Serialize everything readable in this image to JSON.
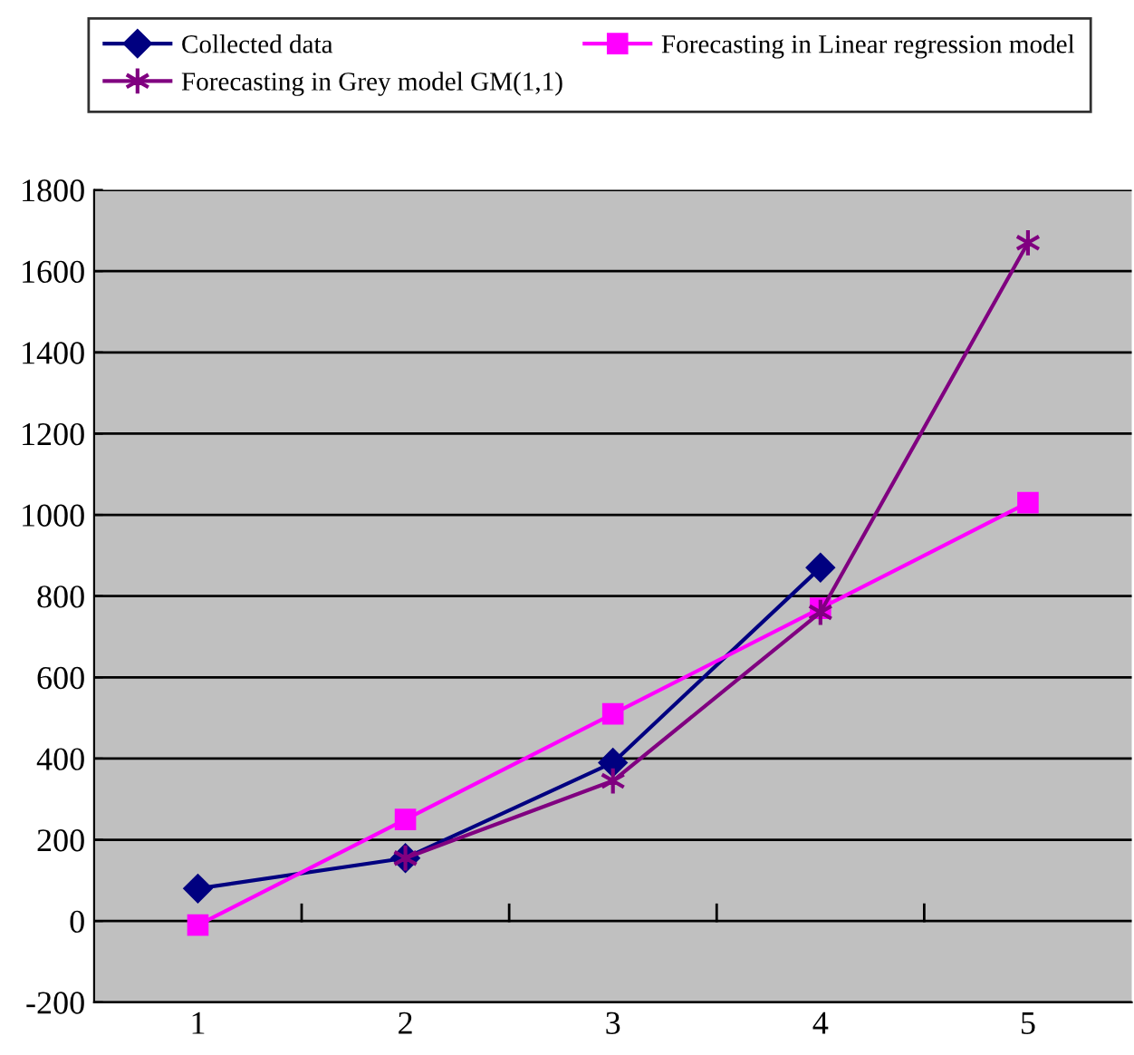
{
  "chart_data": {
    "type": "line",
    "categories": [
      "1",
      "2",
      "3",
      "4",
      "5"
    ],
    "series": [
      {
        "name": "Collected data",
        "color": "#000080",
        "marker": "diamond",
        "values": [
          80,
          155,
          390,
          870,
          null
        ]
      },
      {
        "name": "Forecasting in Linear regression model",
        "color": "#ff00ff",
        "marker": "square",
        "values": [
          -10,
          250,
          510,
          770,
          1030
        ]
      },
      {
        "name": "Forecasting in Grey model GM(1,1)",
        "color": "#800080",
        "marker": "cross",
        "values": [
          null,
          155,
          345,
          760,
          1670
        ]
      }
    ],
    "ylim": [
      -200,
      1800
    ],
    "yticks": [
      -200,
      0,
      200,
      400,
      600,
      800,
      1000,
      1200,
      1400,
      1600,
      1800
    ],
    "grid": "y",
    "legend": "top"
  }
}
